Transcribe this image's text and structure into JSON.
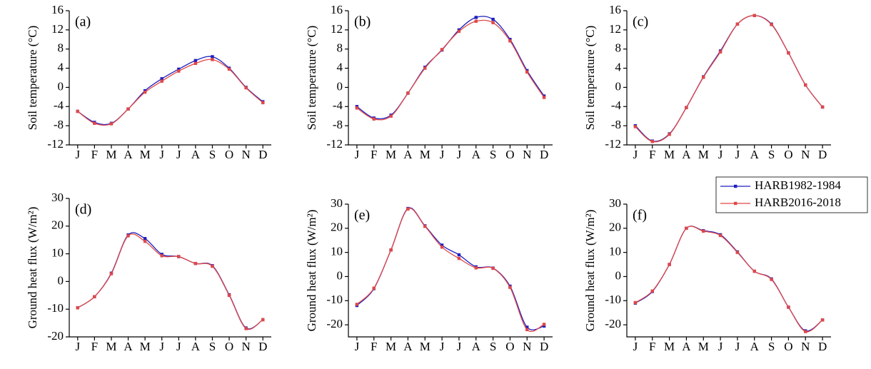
{
  "chart_data": [
    {
      "type": "line",
      "label": "(a)",
      "y_label": "Soil temperature (°C)",
      "categories": [
        "J",
        "F",
        "M",
        "A",
        "M",
        "J",
        "J",
        "A",
        "S",
        "O",
        "N",
        "D"
      ],
      "ylim": [
        -12,
        16
      ],
      "yticks": [
        -12,
        -8,
        -4,
        0,
        4,
        8,
        12,
        16
      ],
      "series": [
        {
          "color": "#1f1fbf",
          "values": [
            -5,
            -7.3,
            -7.5,
            -4.5,
            -0.7,
            1.8,
            3.8,
            5.6,
            6.4,
            4,
            0,
            -3
          ]
        },
        {
          "color": "#e04848",
          "values": [
            -5,
            -7.5,
            -7.6,
            -4.5,
            -1,
            1.3,
            3.4,
            5,
            5.8,
            3.8,
            -0.1,
            -3.2
          ]
        }
      ]
    },
    {
      "type": "line",
      "label": "(b)",
      "y_label": "Soil temperature (°C)",
      "categories": [
        "J",
        "F",
        "M",
        "A",
        "M",
        "J",
        "J",
        "A",
        "S",
        "O",
        "N",
        "D"
      ],
      "ylim": [
        -12,
        16
      ],
      "yticks": [
        -12,
        -8,
        -4,
        0,
        4,
        8,
        12,
        16
      ],
      "series": [
        {
          "color": "#1f1fbf",
          "values": [
            -4,
            -6.4,
            -5.8,
            -1.2,
            4.2,
            7.8,
            12,
            14.6,
            14.2,
            10,
            3.5,
            -1.8
          ]
        },
        {
          "color": "#e04848",
          "values": [
            -4.3,
            -6.6,
            -6,
            -1.2,
            4,
            7.9,
            11.7,
            13.8,
            13.5,
            9.7,
            3.2,
            -2.1
          ]
        }
      ]
    },
    {
      "type": "line",
      "label": "(c)",
      "y_label": "Soil temperature (°C)",
      "categories": [
        "J",
        "F",
        "M",
        "A",
        "M",
        "J",
        "J",
        "A",
        "S",
        "O",
        "N",
        "D"
      ],
      "ylim": [
        -12,
        16
      ],
      "yticks": [
        -12,
        -8,
        -4,
        0,
        4,
        8,
        12,
        16
      ],
      "series": [
        {
          "color": "#1f1fbf",
          "values": [
            -8,
            -11.2,
            -9.7,
            -4.2,
            2.2,
            7.6,
            13.2,
            15,
            13.2,
            7.2,
            0.5,
            -4.1
          ]
        },
        {
          "color": "#e04848",
          "values": [
            -8.2,
            -11.3,
            -9.8,
            -4.2,
            2.1,
            7.4,
            13.2,
            15,
            13.1,
            7.2,
            0.5,
            -4.1
          ]
        }
      ]
    },
    {
      "type": "line",
      "label": "(d)",
      "y_label": "Ground heat flux (W/m²)",
      "categories": [
        "J",
        "F",
        "M",
        "A",
        "M",
        "J",
        "J",
        "A",
        "S",
        "O",
        "N",
        "D"
      ],
      "ylim": [
        -20,
        30
      ],
      "yticks": [
        -20,
        -10,
        0,
        10,
        20,
        30
      ],
      "series": [
        {
          "color": "#1f1fbf",
          "values": [
            -9.5,
            -5.5,
            3,
            16.8,
            15.5,
            9.8,
            9,
            6.5,
            5.7,
            -4.8,
            -16.8,
            -13.8
          ]
        },
        {
          "color": "#e04848",
          "values": [
            -9.5,
            -5.5,
            2.8,
            16.5,
            14.5,
            9.3,
            9,
            6.5,
            5.5,
            -5,
            -17,
            -13.8
          ]
        }
      ]
    },
    {
      "type": "line",
      "label": "(e)",
      "y_label": "Ground heat flux (W/m²)",
      "categories": [
        "J",
        "F",
        "M",
        "A",
        "M",
        "J",
        "J",
        "A",
        "S",
        "O",
        "N",
        "D"
      ],
      "ylim": [
        -25,
        30
      ],
      "yticks": [
        -20,
        -10,
        0,
        10,
        20,
        30
      ],
      "series": [
        {
          "color": "#1f1fbf",
          "values": [
            -12,
            -5,
            11,
            28.2,
            21,
            13,
            9,
            4,
            3.5,
            -4,
            -21,
            -20.5
          ]
        },
        {
          "color": "#e04848",
          "values": [
            -11.5,
            -4.8,
            11,
            28,
            20.8,
            12.2,
            7.5,
            3.6,
            3.4,
            -4.5,
            -22,
            -19.8
          ]
        }
      ]
    },
    {
      "type": "line",
      "label": "(f)",
      "y_label": "Ground heat flux (W/m²)",
      "categories": [
        "J",
        "F",
        "M",
        "A",
        "M",
        "J",
        "J",
        "A",
        "S",
        "O",
        "N",
        "D"
      ],
      "ylim": [
        -25,
        30
      ],
      "yticks": [
        -20,
        -10,
        0,
        10,
        20,
        30
      ],
      "legend": "upper right",
      "series": [
        {
          "name": "HARB1982-1984",
          "color": "#1f1fbf",
          "values": [
            -11,
            -6.2,
            5,
            20,
            19,
            17.3,
            10.2,
            2.2,
            -1,
            -12.7,
            -22.5,
            -18
          ]
        },
        {
          "name": "HARB2016-2018",
          "color": "#e04848",
          "values": [
            -10.8,
            -6,
            5,
            20,
            18.8,
            17,
            10,
            2.2,
            -1.2,
            -12.7,
            -22.8,
            -18
          ]
        }
      ]
    }
  ]
}
